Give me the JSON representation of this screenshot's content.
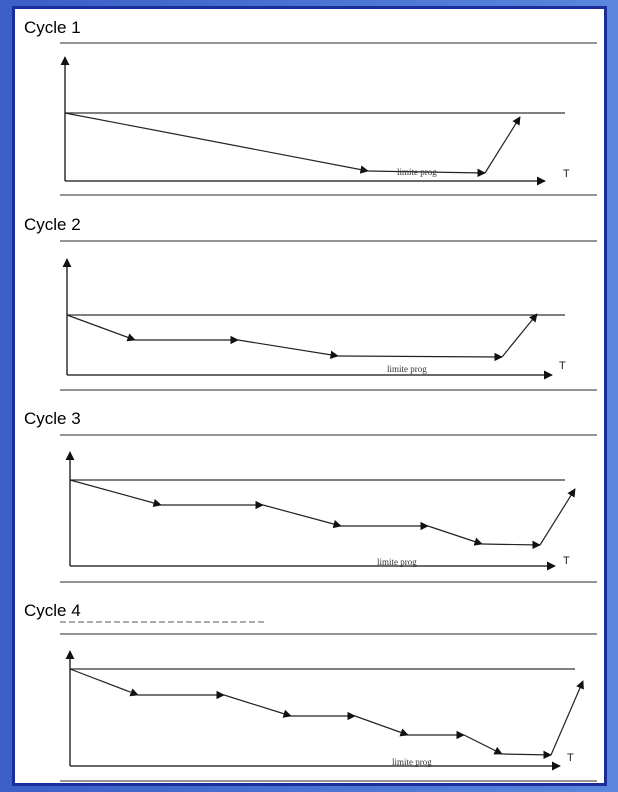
{
  "colors": {
    "accent": "#1a2f9a",
    "background": "#4a74d6"
  },
  "cycles": [
    {
      "label": "Cycle 1",
      "limit_label": "limite prog",
      "axis_label": "T",
      "steps": 1
    },
    {
      "label": "Cycle 2",
      "limit_label": "limite prog",
      "axis_label": "T",
      "steps": 3
    },
    {
      "label": "Cycle 3",
      "limit_label": "limite prog",
      "axis_label": "T",
      "steps": 5
    },
    {
      "label": "Cycle 4",
      "limit_label": "limite prog",
      "axis_label": "T",
      "steps": 6
    }
  ]
}
